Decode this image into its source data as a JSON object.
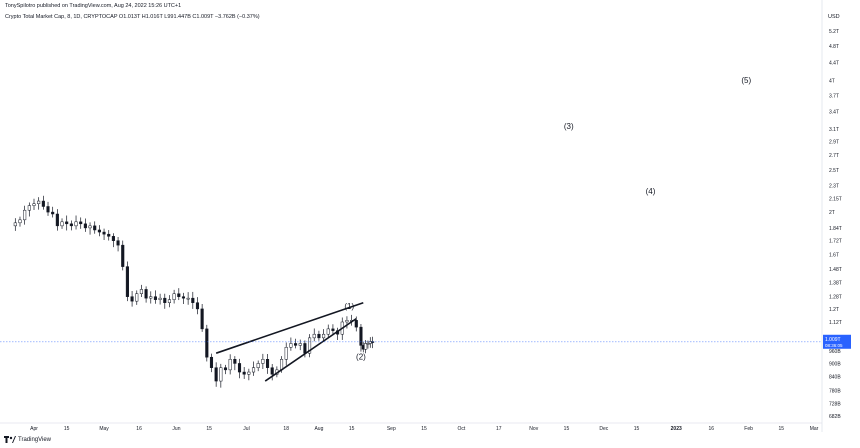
{
  "header": {
    "published": "TonySpilotro published on TradingView.com, Aug 24, 2022 15:26 UTC+1",
    "symbol_line": "Crypto Total Market Cap, 8, 1D, CRYPTOCAP  O1.013T  H1.016T  L991.447B  C1.009T  −3.762B (−0.37%)"
  },
  "footer": {
    "brand": "TradingView",
    "logo_icon": "tradingview-logo-icon"
  },
  "chart_data": {
    "type": "candlestick",
    "currency_label": "USD",
    "y_ticks": [
      "5.2T",
      "4.8T",
      "4.4T",
      "4T",
      "3.7T",
      "3.4T",
      "3.1T",
      "2.9T",
      "2.7T",
      "2.5T",
      "2.3T",
      "2.15T",
      "2T",
      "1.84T",
      "1.72T",
      "1.6T",
      "1.48T",
      "1.38T",
      "1.28T",
      "1.2T",
      "1.12T",
      "1.03T",
      "960B",
      "900B",
      "840B",
      "780B",
      "728B",
      "682B"
    ],
    "y_tick_values": [
      5.2,
      4.8,
      4.4,
      4.0,
      3.7,
      3.4,
      3.1,
      2.9,
      2.7,
      2.5,
      2.3,
      2.15,
      2.0,
      1.84,
      1.72,
      1.6,
      1.48,
      1.38,
      1.28,
      1.2,
      1.12,
      1.03,
      0.96,
      0.9,
      0.84,
      0.78,
      0.728,
      0.682
    ],
    "x_ticks": [
      "Apr",
      "15",
      "May",
      "16",
      "Jun",
      "15",
      "Jul",
      "18",
      "Aug",
      "15",
      "Sep",
      "15",
      "Oct",
      "17",
      "Nov",
      "15",
      "Dec",
      "15",
      "2023",
      "16",
      "Feb",
      "15",
      "Mar"
    ],
    "x_tick_dates": [
      "2022-04-01",
      "2022-04-15",
      "2022-05-01",
      "2022-05-16",
      "2022-06-01",
      "2022-06-15",
      "2022-07-01",
      "2022-07-18",
      "2022-08-01",
      "2022-08-15",
      "2022-09-01",
      "2022-09-15",
      "2022-10-01",
      "2022-10-17",
      "2022-11-01",
      "2022-11-15",
      "2022-12-01",
      "2022-12-15",
      "2023-01-01",
      "2023-01-16",
      "2023-02-01",
      "2023-02-15",
      "2023-03-01"
    ],
    "x_tick_bold": [
      "2023"
    ],
    "last_price": {
      "value": 1.009,
      "label": "1.009T",
      "countdown": "08:36:05",
      "color": "#2962ff"
    },
    "price_close_series": [
      {
        "date": "2022-03-22",
        "close": 1.86
      },
      {
        "date": "2022-03-24",
        "close": 1.89
      },
      {
        "date": "2022-03-26",
        "close": 1.92
      },
      {
        "date": "2022-03-28",
        "close": 2.02
      },
      {
        "date": "2022-03-30",
        "close": 2.07
      },
      {
        "date": "2022-04-01",
        "close": 2.09
      },
      {
        "date": "2022-04-03",
        "close": 2.12
      },
      {
        "date": "2022-04-05",
        "close": 2.06
      },
      {
        "date": "2022-04-07",
        "close": 2.0
      },
      {
        "date": "2022-04-09",
        "close": 1.98
      },
      {
        "date": "2022-04-11",
        "close": 1.86
      },
      {
        "date": "2022-04-13",
        "close": 1.9
      },
      {
        "date": "2022-04-15",
        "close": 1.88
      },
      {
        "date": "2022-04-17",
        "close": 1.86
      },
      {
        "date": "2022-04-19",
        "close": 1.9
      },
      {
        "date": "2022-04-21",
        "close": 1.88
      },
      {
        "date": "2022-04-23",
        "close": 1.84
      },
      {
        "date": "2022-04-25",
        "close": 1.86
      },
      {
        "date": "2022-04-27",
        "close": 1.82
      },
      {
        "date": "2022-04-29",
        "close": 1.8
      },
      {
        "date": "2022-05-01",
        "close": 1.78
      },
      {
        "date": "2022-05-03",
        "close": 1.76
      },
      {
        "date": "2022-05-05",
        "close": 1.72
      },
      {
        "date": "2022-05-07",
        "close": 1.68
      },
      {
        "date": "2022-05-09",
        "close": 1.5
      },
      {
        "date": "2022-05-11",
        "close": 1.28
      },
      {
        "date": "2022-05-13",
        "close": 1.25
      },
      {
        "date": "2022-05-15",
        "close": 1.3
      },
      {
        "date": "2022-05-17",
        "close": 1.33
      },
      {
        "date": "2022-05-19",
        "close": 1.27
      },
      {
        "date": "2022-05-21",
        "close": 1.28
      },
      {
        "date": "2022-05-23",
        "close": 1.26
      },
      {
        "date": "2022-05-25",
        "close": 1.27
      },
      {
        "date": "2022-05-27",
        "close": 1.24
      },
      {
        "date": "2022-05-29",
        "close": 1.26
      },
      {
        "date": "2022-05-31",
        "close": 1.3
      },
      {
        "date": "2022-06-02",
        "close": 1.28
      },
      {
        "date": "2022-06-04",
        "close": 1.27
      },
      {
        "date": "2022-06-06",
        "close": 1.27
      },
      {
        "date": "2022-06-08",
        "close": 1.24
      },
      {
        "date": "2022-06-10",
        "close": 1.2
      },
      {
        "date": "2022-06-12",
        "close": 1.08
      },
      {
        "date": "2022-06-14",
        "close": 0.93
      },
      {
        "date": "2022-06-16",
        "close": 0.88
      },
      {
        "date": "2022-06-18",
        "close": 0.82
      },
      {
        "date": "2022-06-20",
        "close": 0.88
      },
      {
        "date": "2022-06-22",
        "close": 0.87
      },
      {
        "date": "2022-06-24",
        "close": 0.92
      },
      {
        "date": "2022-06-26",
        "close": 0.9
      },
      {
        "date": "2022-06-28",
        "close": 0.86
      },
      {
        "date": "2022-06-30",
        "close": 0.85
      },
      {
        "date": "2022-07-02",
        "close": 0.86
      },
      {
        "date": "2022-07-04",
        "close": 0.88
      },
      {
        "date": "2022-07-06",
        "close": 0.9
      },
      {
        "date": "2022-07-08",
        "close": 0.92
      },
      {
        "date": "2022-07-10",
        "close": 0.88
      },
      {
        "date": "2022-07-12",
        "close": 0.85
      },
      {
        "date": "2022-07-14",
        "close": 0.87
      },
      {
        "date": "2022-07-16",
        "close": 0.92
      },
      {
        "date": "2022-07-18",
        "close": 0.98
      },
      {
        "date": "2022-07-20",
        "close": 1.0
      },
      {
        "date": "2022-07-22",
        "close": 0.99
      },
      {
        "date": "2022-07-24",
        "close": 1.0
      },
      {
        "date": "2022-07-26",
        "close": 0.95
      },
      {
        "date": "2022-07-28",
        "close": 1.03
      },
      {
        "date": "2022-07-30",
        "close": 1.05
      },
      {
        "date": "2022-08-01",
        "close": 1.03
      },
      {
        "date": "2022-08-03",
        "close": 1.05
      },
      {
        "date": "2022-08-05",
        "close": 1.08
      },
      {
        "date": "2022-08-07",
        "close": 1.07
      },
      {
        "date": "2022-08-09",
        "close": 1.05
      },
      {
        "date": "2022-08-11",
        "close": 1.12
      },
      {
        "date": "2022-08-13",
        "close": 1.13
      },
      {
        "date": "2022-08-15",
        "close": 1.13
      },
      {
        "date": "2022-08-17",
        "close": 1.09
      },
      {
        "date": "2022-08-19",
        "close": 0.99
      },
      {
        "date": "2022-08-20",
        "close": 0.97
      },
      {
        "date": "2022-08-21",
        "close": 1.0
      },
      {
        "date": "2022-08-22",
        "close": 1.0
      },
      {
        "date": "2022-08-23",
        "close": 1.01
      },
      {
        "date": "2022-08-24",
        "close": 1.009
      }
    ],
    "trendlines": [
      {
        "from": {
          "date": "2022-06-18",
          "value": 0.95
        },
        "to": {
          "date": "2022-08-20",
          "value": 1.24
        }
      },
      {
        "from": {
          "date": "2022-07-09",
          "value": 0.82
        },
        "to": {
          "date": "2022-08-17",
          "value": 1.14
        }
      }
    ],
    "wave_labels": [
      {
        "label": "(1)",
        "date": "2022-08-14",
        "value": 1.2
      },
      {
        "label": "(2)",
        "date": "2022-08-19",
        "value": 0.92
      },
      {
        "label": "(3)",
        "date": "2022-11-16",
        "value": 3.1
      },
      {
        "label": "(4)",
        "date": "2022-12-21",
        "value": 2.2
      },
      {
        "label": "(5)",
        "date": "2023-01-31",
        "value": 3.95
      }
    ]
  }
}
